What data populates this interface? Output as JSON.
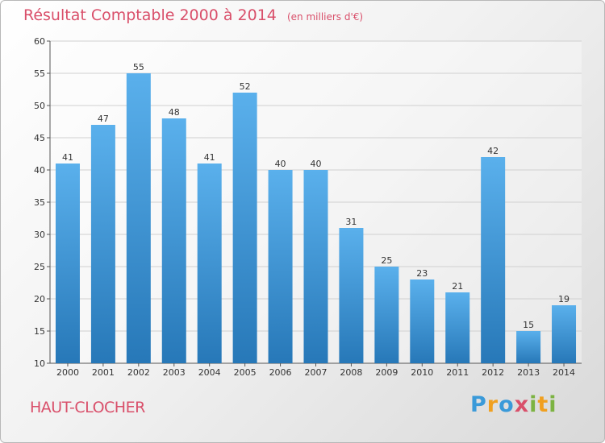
{
  "header": {
    "title": "Résultat Comptable 2000 à 2014",
    "unit": "(en milliers d'€)"
  },
  "place": "HAUT-CLOCHER",
  "logo": {
    "text": "Proxiti",
    "letters": [
      {
        "ch": "P",
        "color": "#3a9ad9"
      },
      {
        "ch": "r",
        "color": "#f0a020"
      },
      {
        "ch": "o",
        "color": "#3a9ad9"
      },
      {
        "ch": "x",
        "color": "#d94f6a"
      },
      {
        "ch": "i",
        "color": "#7cb342"
      },
      {
        "ch": "t",
        "color": "#f0a020"
      },
      {
        "ch": "i",
        "color": "#7cb342"
      }
    ]
  },
  "colors": {
    "bar_top": "#5ab0ec",
    "bar_bottom": "#2778b8",
    "title": "#d94f6a",
    "grid": "#d0d0d0"
  },
  "chart_data": {
    "type": "bar",
    "title": "Résultat Comptable 2000 à 2014",
    "xlabel": "",
    "ylabel": "(en milliers d'€)",
    "categories": [
      "2000",
      "2001",
      "2002",
      "2003",
      "2004",
      "2005",
      "2006",
      "2007",
      "2008",
      "2009",
      "2010",
      "2011",
      "2012",
      "2013",
      "2014"
    ],
    "values": [
      41,
      47,
      55,
      48,
      41,
      52,
      40,
      40,
      31,
      25,
      23,
      21,
      42,
      15,
      19
    ],
    "ylim": [
      10,
      60
    ],
    "yticks": [
      10,
      15,
      20,
      25,
      30,
      35,
      40,
      45,
      50,
      55,
      60
    ],
    "grid": true
  }
}
